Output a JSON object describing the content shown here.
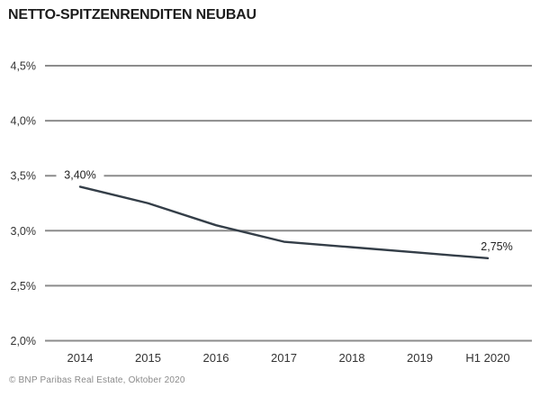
{
  "title": "NETTO-SPITZENRENDITEN NEUBAU",
  "footer": "© BNP Paribas Real Estate, Oktober 2020",
  "colors": {
    "background": "#ffffff",
    "line": "#343e48",
    "grid": "#8c8c8c",
    "title_text": "#1d1d1d",
    "axis_text": "#333333",
    "data_label_text": "#222222",
    "footer_text": "#8a8a8a"
  },
  "chart_data": {
    "type": "line",
    "title": "NETTO-SPITZENRENDITEN NEUBAU",
    "categories": [
      "2014",
      "2015",
      "2016",
      "2017",
      "2018",
      "2019",
      "H1 2020"
    ],
    "values": [
      3.4,
      3.25,
      3.05,
      2.9,
      2.85,
      2.8,
      2.75
    ],
    "xlabel": "",
    "ylabel": "",
    "ylim": [
      2.0,
      4.5
    ],
    "ytick_step": 0.5,
    "ytick_labels": [
      "4,5%",
      "4,0%",
      "3,5%",
      "3,0%",
      "2,5%",
      "2,0%"
    ],
    "grid": "horizontal",
    "legend": "none",
    "annotations": [
      {
        "text": "3,40%",
        "category": "2014",
        "value": 3.4
      },
      {
        "text": "2,75%",
        "category": "H1 2020",
        "value": 2.75
      }
    ]
  }
}
